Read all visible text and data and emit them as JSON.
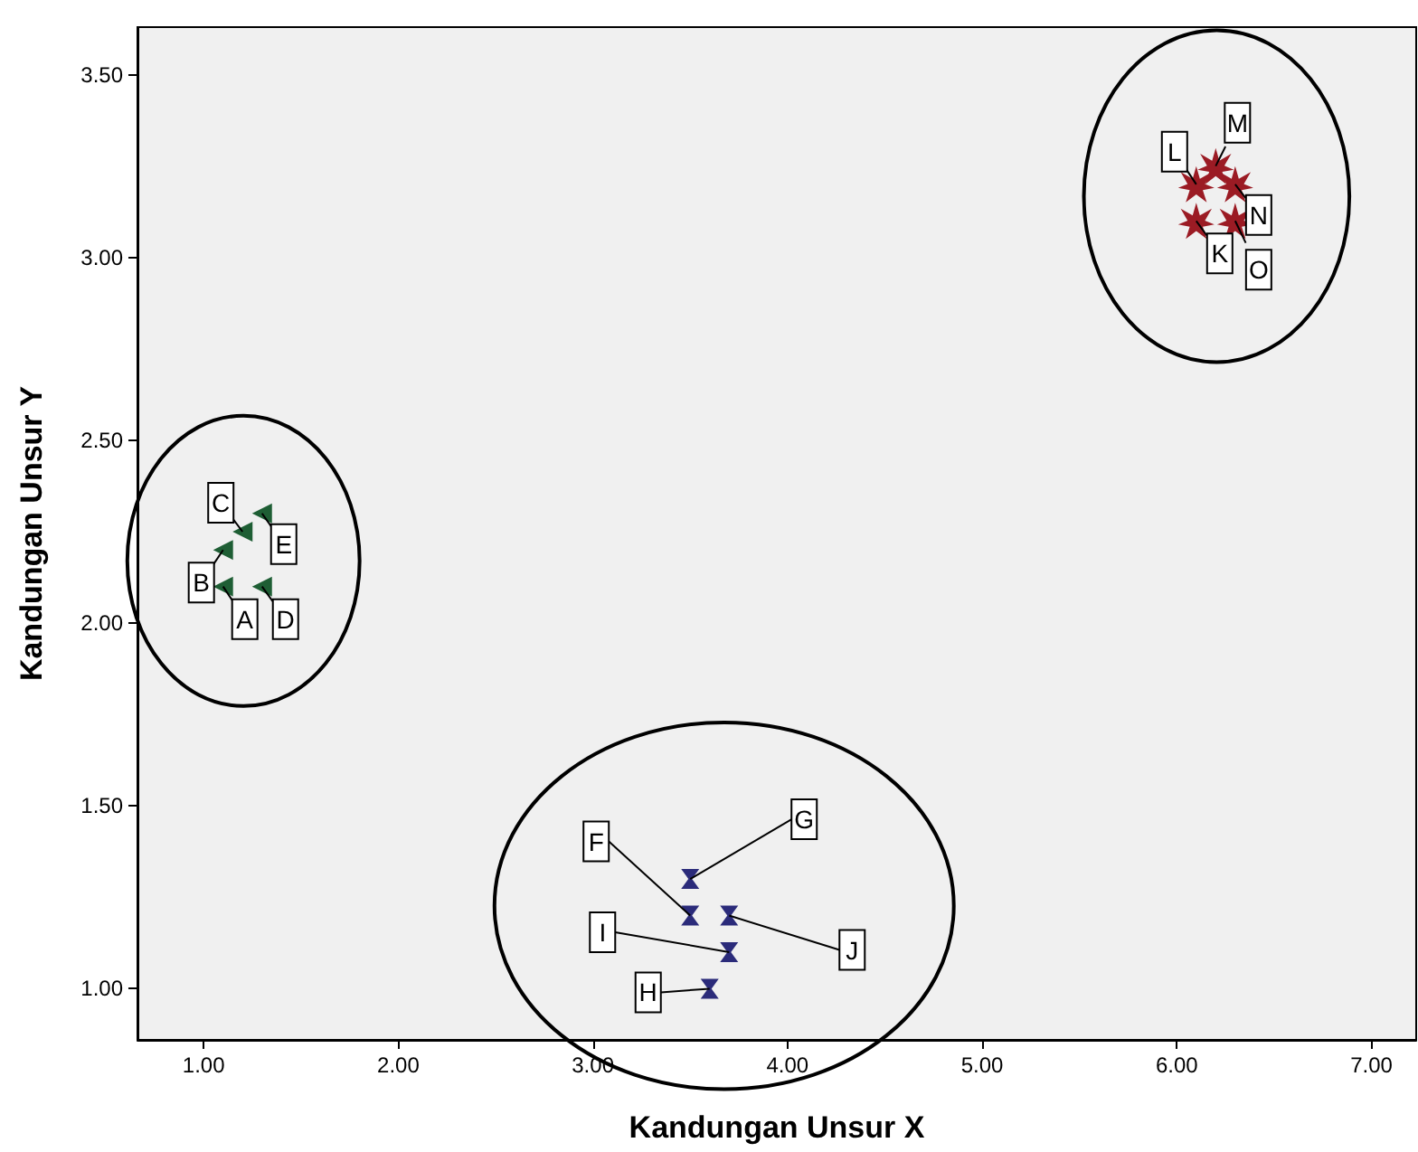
{
  "chart_data": {
    "type": "scatter",
    "xlabel": "Kandungan Unsur X",
    "ylabel": "Kandungan Unsur Y",
    "xlim": [
      0.66,
      7.23
    ],
    "ylim": [
      0.86,
      3.63
    ],
    "xticks": [
      {
        "value": 1,
        "label": "1.00"
      },
      {
        "value": 2,
        "label": "2.00"
      },
      {
        "value": 3,
        "label": "3.00"
      },
      {
        "value": 4,
        "label": "4.00"
      },
      {
        "value": 5,
        "label": "5.00"
      },
      {
        "value": 6,
        "label": "6.00"
      },
      {
        "value": 7,
        "label": "7.00"
      }
    ],
    "yticks": [
      {
        "value": 1,
        "label": "1.00"
      },
      {
        "value": 1.5,
        "label": "1.50"
      },
      {
        "value": 2,
        "label": "2.00"
      },
      {
        "value": 2.5,
        "label": "2.50"
      },
      {
        "value": 3,
        "label": "3.00"
      },
      {
        "value": 3.5,
        "label": "3.50"
      }
    ],
    "grid": false,
    "series": [
      {
        "color": "#1e5e34",
        "marker": "triangle",
        "x": [
          1.1,
          1.2,
          1.3,
          1.3,
          1.1
        ],
        "values": [
          2.1,
          2.25,
          2.3,
          2.1,
          2.2
        ]
      },
      {
        "color": "#2b2b7a",
        "x": [
          3.5,
          3.5,
          3.7,
          3.7,
          3.6
        ],
        "values": [
          1.3,
          1.2,
          1.2,
          1.1,
          1.0
        ]
      },
      {
        "color": "#9b1b24",
        "marker": "star",
        "x": [
          6.2,
          6.1,
          6.3,
          6.1,
          6.3
        ],
        "values": [
          3.25,
          3.2,
          3.2,
          3.1,
          3.1
        ]
      }
    ],
    "annotations": [
      {
        "text": "A",
        "x": 1.1,
        "y": 2.1
      },
      {
        "text": "B",
        "x": 1.1,
        "y": 2.2
      },
      {
        "text": "C",
        "x": 1.2,
        "y": 2.25
      },
      {
        "text": "D",
        "x": 1.3,
        "y": 2.1
      },
      {
        "text": "E",
        "x": 1.3,
        "y": 2.3
      },
      {
        "text": "F",
        "x": 3.5,
        "y": 1.2
      },
      {
        "text": "G",
        "x": 3.5,
        "y": 1.3
      },
      {
        "text": "H",
        "x": 3.6,
        "y": 1.0
      },
      {
        "text": "I",
        "x": 3.7,
        "y": 1.1
      },
      {
        "text": "J",
        "x": 3.7,
        "y": 1.2
      },
      {
        "text": "K",
        "x": 6.1,
        "y": 3.1
      },
      {
        "text": "L",
        "x": 6.1,
        "y": 3.2
      },
      {
        "text": "M",
        "x": 6.2,
        "y": 3.25
      },
      {
        "text": "N",
        "x": 6.3,
        "y": 3.2
      },
      {
        "text": "O",
        "x": 6.3,
        "y": 3.1
      }
    ]
  }
}
